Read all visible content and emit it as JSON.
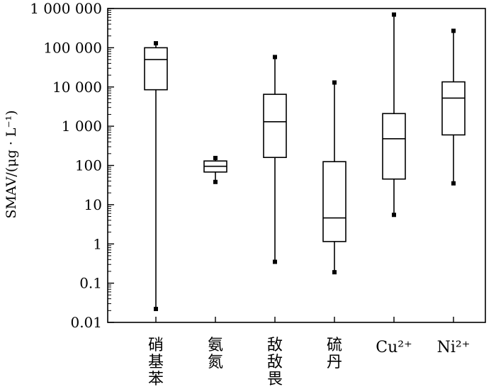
{
  "chart_data": {
    "type": "box",
    "ylabel": "SMAV/(μg · L⁻¹)",
    "yscale": "log",
    "ylim": [
      0.01,
      1000000
    ],
    "yticks": [
      {
        "value": 0.01,
        "label": "0.01"
      },
      {
        "value": 0.1,
        "label": "0.1"
      },
      {
        "value": 1,
        "label": "1"
      },
      {
        "value": 10,
        "label": "10"
      },
      {
        "value": 100,
        "label": "100"
      },
      {
        "value": 1000,
        "label": "1 000"
      },
      {
        "value": 10000,
        "label": "10 000"
      },
      {
        "value": 100000,
        "label": "100 000"
      },
      {
        "value": 1000000,
        "label": "1 000 000"
      }
    ],
    "categories": [
      "硝基苯",
      "氨氮",
      "敌敌畏",
      "硫丹",
      "Cu²⁺",
      "Ni²⁺"
    ],
    "boxes": [
      {
        "category": "硝基苯",
        "min": 0.022,
        "q1": 8500,
        "median": 50000,
        "q3": 100000,
        "max": 130000,
        "outliers": []
      },
      {
        "category": "氨氮",
        "min": 38,
        "q1": 68,
        "median": 95,
        "q3": 130,
        "max": 155,
        "outliers": []
      },
      {
        "category": "敌敌畏",
        "min": 0.35,
        "q1": 160,
        "median": 1300,
        "q3": 6500,
        "max": 58000,
        "outliers": []
      },
      {
        "category": "硫丹",
        "min": 0.19,
        "q1": 1.15,
        "median": 4.6,
        "q3": 125,
        "max": 13000,
        "outliers": []
      },
      {
        "category": "Cu²⁺",
        "min": 5.5,
        "q1": 45,
        "median": 480,
        "q3": 2100,
        "max": 700000,
        "outliers": []
      },
      {
        "category": "Ni²⁺",
        "min": 35,
        "q1": 600,
        "median": 5200,
        "q3": 13500,
        "max": 270000,
        "outliers": []
      }
    ],
    "grid": false,
    "legend": "none"
  }
}
